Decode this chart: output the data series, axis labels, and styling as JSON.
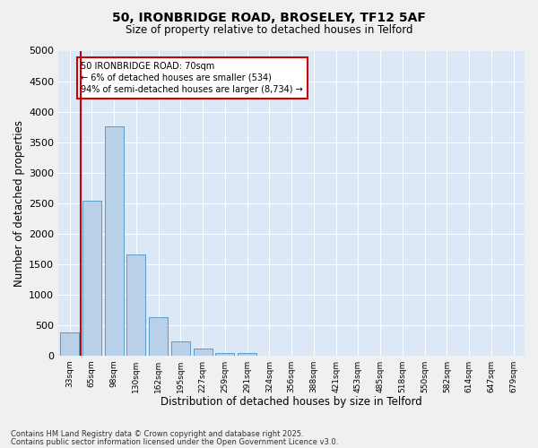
{
  "title1": "50, IRONBRIDGE ROAD, BROSELEY, TF12 5AF",
  "title2": "Size of property relative to detached houses in Telford",
  "xlabel": "Distribution of detached houses by size in Telford",
  "ylabel": "Number of detached properties",
  "bins": [
    "33sqm",
    "65sqm",
    "98sqm",
    "130sqm",
    "162sqm",
    "195sqm",
    "227sqm",
    "259sqm",
    "291sqm",
    "324sqm",
    "356sqm",
    "388sqm",
    "421sqm",
    "453sqm",
    "485sqm",
    "518sqm",
    "550sqm",
    "582sqm",
    "614sqm",
    "647sqm",
    "679sqm"
  ],
  "values": [
    380,
    2540,
    3760,
    1650,
    620,
    235,
    105,
    45,
    45,
    0,
    0,
    0,
    0,
    0,
    0,
    0,
    0,
    0,
    0,
    0,
    0
  ],
  "bar_color": "#b8d0e8",
  "bar_edge_color": "#5a9dc8",
  "property_line_x": 0.5,
  "property_line_color": "#cc0000",
  "ylim": [
    0,
    5000
  ],
  "yticks": [
    0,
    500,
    1000,
    1500,
    2000,
    2500,
    3000,
    3500,
    4000,
    4500,
    5000
  ],
  "annotation_text": "50 IRONBRIDGE ROAD: 70sqm\n← 6% of detached houses are smaller (534)\n94% of semi-detached houses are larger (8,734) →",
  "annotation_box_color": "#ffffff",
  "annotation_box_edge": "#cc0000",
  "footer1": "Contains HM Land Registry data © Crown copyright and database right 2025.",
  "footer2": "Contains public sector information licensed under the Open Government Licence v3.0.",
  "fig_background": "#f0f0f0",
  "plot_background": "#dce8f5"
}
